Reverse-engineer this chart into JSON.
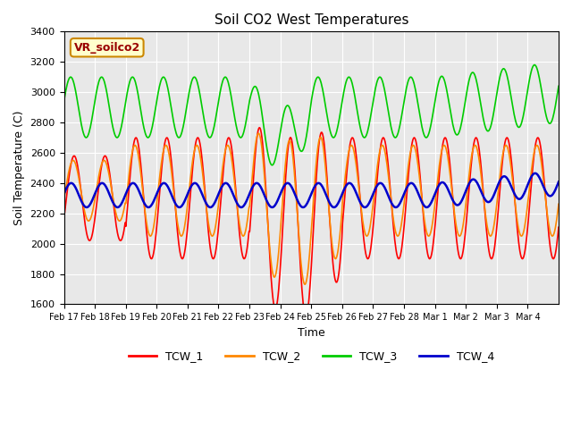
{
  "title": "Soil CO2 West Temperatures",
  "xlabel": "Time",
  "ylabel": "Soil Temperature (C)",
  "ylim": [
    1600,
    3400
  ],
  "annotation_text": "VR_soilco2",
  "annotation_bg": "#ffffcc",
  "annotation_border": "#cc8800",
  "annotation_text_color": "#990000",
  "line_colors": {
    "TCW_1": "#ff0000",
    "TCW_2": "#ff8800",
    "TCW_3": "#00cc00",
    "TCW_4": "#0000cc"
  },
  "plot_bg": "#e8e8e8",
  "fig_bg": "#ffffff",
  "grid_color": "#ffffff",
  "tick_labels": [
    "Feb 17",
    "Feb 18",
    "Feb 19",
    "Feb 20",
    "Feb 21",
    "Feb 22",
    "Feb 23",
    "Feb 24",
    "Feb 25",
    "Feb 26",
    "Feb 27",
    "Feb 28",
    "Mar 1",
    "Mar 2",
    "Mar 3",
    "Mar 4"
  ],
  "num_days": 16,
  "yticks": [
    1600,
    1800,
    2000,
    2200,
    2400,
    2600,
    2800,
    3000,
    3200,
    3400
  ]
}
